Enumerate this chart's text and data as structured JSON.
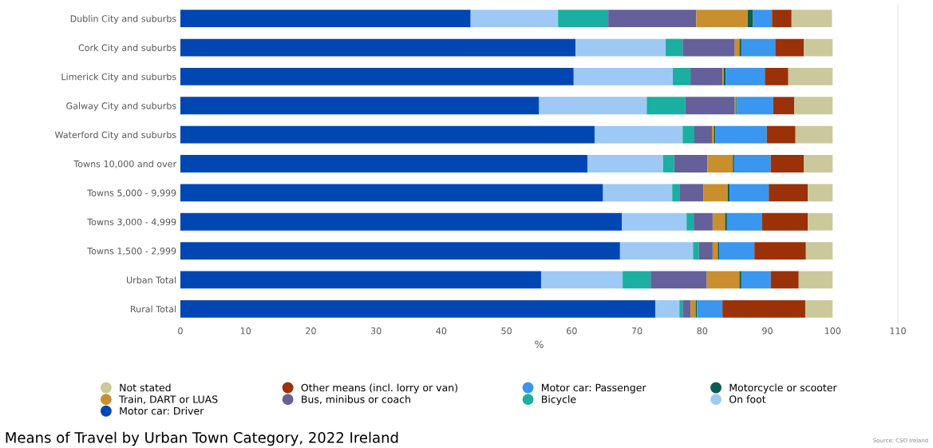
{
  "chart_data": {
    "type": "bar",
    "orientation": "horizontal",
    "stacked": true,
    "title": "Means of Travel by Urban Town Category, 2022 Ireland",
    "xlabel": "%",
    "categories": [
      "Dublin City and suburbs",
      "Cork City and suburbs",
      "Limerick City and suburbs",
      "Galway City and suburbs",
      "Waterford City and suburbs",
      "Towns 10,000 and over",
      "Towns 5,000 - 9,999",
      "Towns 3,000 - 4,999",
      "Towns 1,500 - 2,999",
      "Urban Total",
      "Rural Total"
    ],
    "series": [
      {
        "name": "Motor car: Driver",
        "color": "#0047b3",
        "values": [
          44.5,
          60.6,
          60.3,
          55.0,
          63.5,
          62.4,
          64.8,
          67.7,
          67.4,
          55.3,
          72.8
        ]
      },
      {
        "name": "On foot",
        "color": "#9ec9f5",
        "values": [
          13.4,
          13.8,
          15.2,
          16.5,
          13.5,
          11.6,
          10.6,
          9.9,
          11.2,
          12.5,
          3.7
        ]
      },
      {
        "name": "Bicycle",
        "color": "#1aafa0",
        "values": [
          7.7,
          2.6,
          2.7,
          5.9,
          1.8,
          1.7,
          1.1,
          1.1,
          0.9,
          4.3,
          0.5
        ]
      },
      {
        "name": "Bus, minibus or coach",
        "color": "#655f9a",
        "values": [
          13.5,
          8.0,
          4.9,
          7.6,
          2.7,
          5.1,
          3.7,
          2.9,
          2.1,
          8.6,
          1.2
        ]
      },
      {
        "name": "Train, DART or LUAS",
        "color": "#c98f2f",
        "values": [
          7.9,
          0.7,
          0.2,
          0.2,
          0.3,
          3.9,
          3.7,
          1.9,
          0.8,
          5.0,
          0.8
        ]
      },
      {
        "name": "Motorcycle or scooter",
        "color": "#0b5e50",
        "values": [
          0.8,
          0.3,
          0.3,
          0.1,
          0.2,
          0.2,
          0.3,
          0.3,
          0.2,
          0.3,
          0.2
        ]
      },
      {
        "name": "Motor car: Passenger",
        "color": "#3a96ef",
        "values": [
          2.9,
          5.2,
          6.0,
          5.6,
          7.9,
          5.6,
          6.0,
          5.4,
          5.4,
          4.5,
          3.9
        ]
      },
      {
        "name": "Other means (incl. lorry or van)",
        "color": "#9b3108",
        "values": [
          3.0,
          4.4,
          3.6,
          3.2,
          4.4,
          5.1,
          6.0,
          7.0,
          7.9,
          4.3,
          12.7
        ]
      },
      {
        "name": "Not stated",
        "color": "#cbc99b",
        "values": [
          6.2,
          4.4,
          6.8,
          5.9,
          5.7,
          4.4,
          3.8,
          3.8,
          4.1,
          5.2,
          4.2
        ]
      }
    ],
    "xlim": [
      0,
      110
    ],
    "xticks": [
      0,
      10,
      20,
      30,
      40,
      50,
      60,
      70,
      80,
      90,
      100,
      110
    ],
    "grid": false,
    "legend": "bottom",
    "annotations": [
      "Source: CSO Ireland"
    ]
  }
}
